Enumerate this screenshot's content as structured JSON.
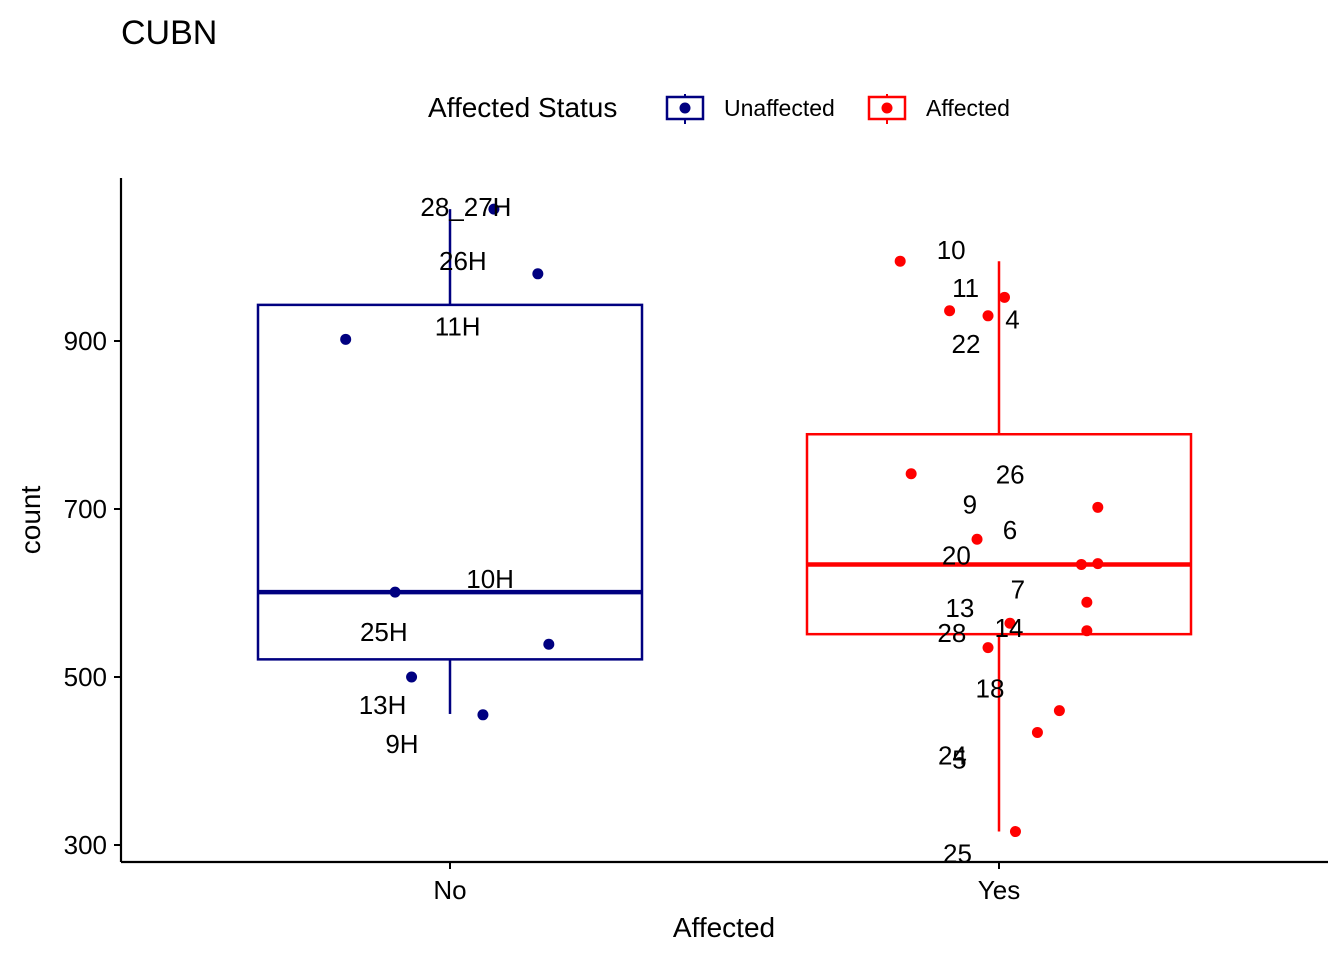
{
  "chart_data": {
    "type": "boxplot",
    "title": "CUBN",
    "xlabel": "Affected",
    "ylabel": "count",
    "categories": [
      "No",
      "Yes"
    ],
    "yticks": [
      300,
      500,
      700,
      900
    ],
    "ylim": [
      280,
      1090
    ],
    "legend": {
      "title": "Affected Status",
      "position": "top",
      "entries": [
        {
          "name": "Unaffected",
          "color": "#000080"
        },
        {
          "name": "Affected",
          "color": "#ff0000"
        }
      ]
    },
    "series": [
      {
        "name": "Unaffected",
        "category": "No",
        "color": "#000080",
        "box": {
          "whisker_low": 456,
          "q1": 521,
          "median": 601,
          "q3": 943,
          "whisker_high": 1057
        },
        "points": [
          {
            "label": "28_27H",
            "value": 1057,
            "jitter": 0.08
          },
          {
            "label": "26H",
            "value": 980,
            "jitter": 0.16
          },
          {
            "label": "11H",
            "value": 902,
            "jitter": -0.19
          },
          {
            "label": "10H",
            "value": 601,
            "jitter": -0.1
          },
          {
            "label": "25H",
            "value": 539,
            "jitter": 0.18
          },
          {
            "label": "13H",
            "value": 500,
            "jitter": -0.07
          },
          {
            "label": "9H",
            "value": 455,
            "jitter": 0.06
          }
        ]
      },
      {
        "name": "Affected",
        "category": "Yes",
        "color": "#ff0000",
        "box": {
          "whisker_low": 316,
          "q1": 551,
          "median": 634,
          "q3": 789,
          "whisker_high": 995
        },
        "points": [
          {
            "label": "10",
            "value": 995,
            "jitter": -0.18
          },
          {
            "label": "11",
            "value": 936,
            "jitter": -0.09
          },
          {
            "label": "4",
            "value": 952,
            "jitter": 0.01
          },
          {
            "label": "22",
            "value": 930,
            "jitter": -0.02
          },
          {
            "label": "26",
            "value": 742,
            "jitter": -0.16
          },
          {
            "label": "9",
            "value": 702,
            "jitter": 0.18
          },
          {
            "label": "6",
            "value": 664,
            "jitter": -0.04
          },
          {
            "label": "20",
            "value": 634,
            "jitter": 0.15
          },
          {
            "label": "7",
            "value": 635,
            "jitter": 0.18
          },
          {
            "label": "13",
            "value": 589,
            "jitter": 0.16
          },
          {
            "label": "14",
            "value": 564,
            "jitter": 0.02
          },
          {
            "label": "28",
            "value": 555,
            "jitter": 0.16
          },
          {
            "label": "18",
            "value": 535,
            "jitter": -0.02
          },
          {
            "label": "5",
            "value": 460,
            "jitter": 0.11
          },
          {
            "label": "24",
            "value": 434,
            "jitter": 0.07
          },
          {
            "label": "25",
            "value": 316,
            "jitter": 0.03
          }
        ]
      }
    ]
  }
}
